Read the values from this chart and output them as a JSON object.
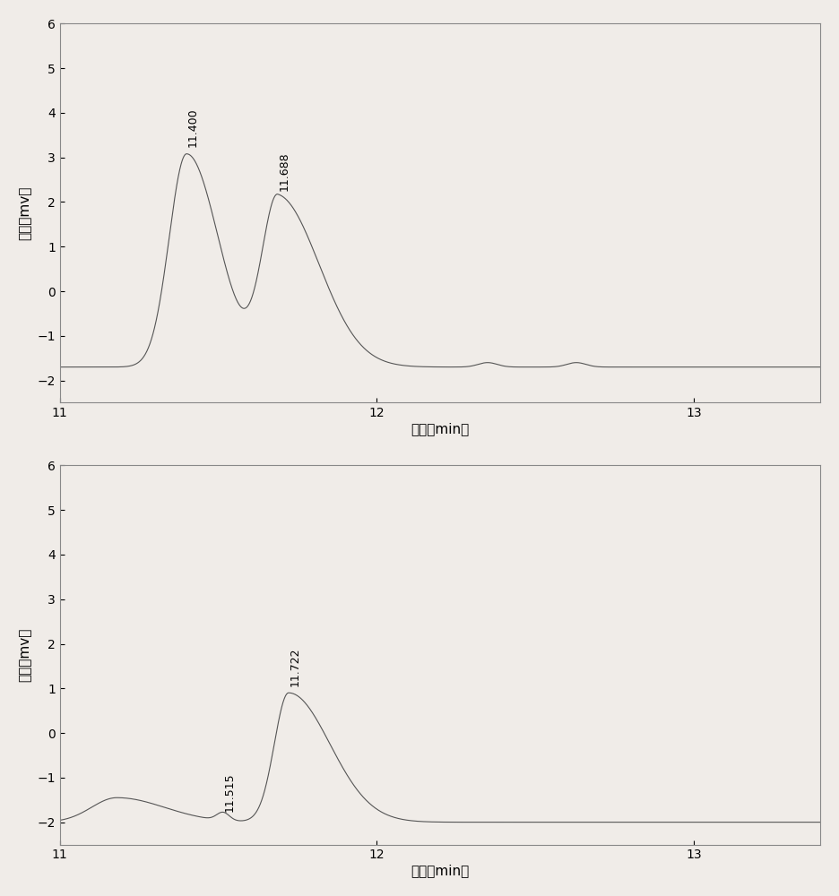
{
  "top_chart": {
    "peak1_x": 11.4,
    "peak1_y": 3.08,
    "peak1_label": "11.400",
    "peak2_x": 11.688,
    "peak2_y": 2.1,
    "peak2_label": "11.688",
    "baseline": -1.7,
    "xlim": [
      11.0,
      13.4
    ],
    "ylim": [
      -2.5,
      6.0
    ],
    "yticks": [
      -2,
      -1,
      0,
      1,
      2,
      3,
      4,
      5,
      6
    ],
    "xticks": [
      11,
      12,
      13
    ],
    "ylabel": "电压（mv）",
    "xlabel": "时间（min）"
  },
  "bottom_chart": {
    "peak1_x": 11.515,
    "peak1_y": -1.82,
    "peak1_label": "11.515",
    "peak2_x": 11.722,
    "peak2_y": 0.9,
    "peak2_label": "11.722",
    "hump_x": 11.18,
    "hump_y": -1.45,
    "baseline": -2.0,
    "xlim": [
      11.0,
      13.4
    ],
    "ylim": [
      -2.5,
      6.0
    ],
    "yticks": [
      -2,
      -1,
      0,
      1,
      2,
      3,
      4,
      5,
      6
    ],
    "xticks": [
      11,
      12,
      13
    ],
    "ylabel": "电压（mv）",
    "xlabel": "时间（min）"
  },
  "line_color": "#555555",
  "background_color": "#f0ece8",
  "plot_bg_color": "#f0ece8"
}
